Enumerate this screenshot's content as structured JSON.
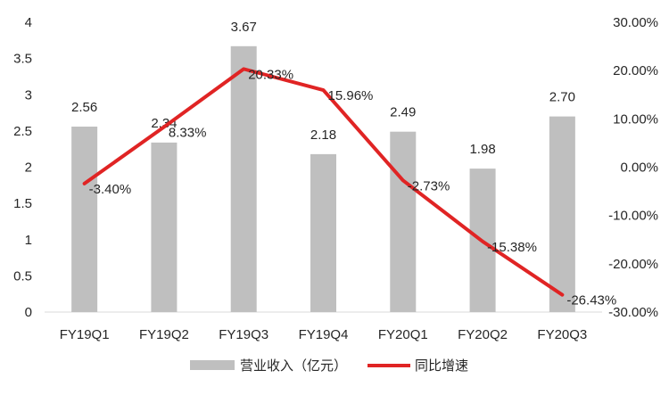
{
  "chart_data": {
    "type": "bar",
    "categories": [
      "FY19Q1",
      "FY19Q2",
      "FY19Q3",
      "FY19Q4",
      "FY20Q1",
      "FY20Q2",
      "FY20Q3"
    ],
    "series": [
      {
        "name": "营业收入（亿元）",
        "type": "bar",
        "axis": "left",
        "values": [
          2.56,
          2.34,
          3.67,
          2.18,
          2.49,
          1.98,
          2.7
        ],
        "labels": [
          "2.56",
          "2.34",
          "3.67",
          "2.18",
          "2.49",
          "1.98",
          "2.70"
        ],
        "color": "#bfbfbf"
      },
      {
        "name": "同比增速",
        "type": "line",
        "axis": "right",
        "values": [
          -3.4,
          8.33,
          20.33,
          15.96,
          -2.73,
          -15.38,
          -26.43
        ],
        "labels": [
          "-3.40%",
          "8.33%",
          "20.33%",
          "15.96%",
          "-2.73%",
          "-15.38%",
          "-26.43%"
        ],
        "color": "#e02424"
      }
    ],
    "y_left": {
      "ylim": [
        0,
        4
      ],
      "ticks": [
        0,
        0.5,
        1,
        1.5,
        2,
        2.5,
        3,
        3.5,
        4
      ],
      "tick_labels": [
        "0",
        "0.5",
        "1",
        "1.5",
        "2",
        "2.5",
        "3",
        "3.5",
        "4"
      ]
    },
    "y_right": {
      "ylim": [
        -30,
        30
      ],
      "ticks": [
        -30,
        -20,
        -10,
        0,
        10,
        20,
        30
      ],
      "tick_labels": [
        "-30.00%",
        "-20.00%",
        "-10.00%",
        "0.00%",
        "10.00%",
        "20.00%",
        "30.00%"
      ]
    },
    "grid": false,
    "legend_position": "bottom-center",
    "axis_line_color": "#d9d9d9"
  }
}
